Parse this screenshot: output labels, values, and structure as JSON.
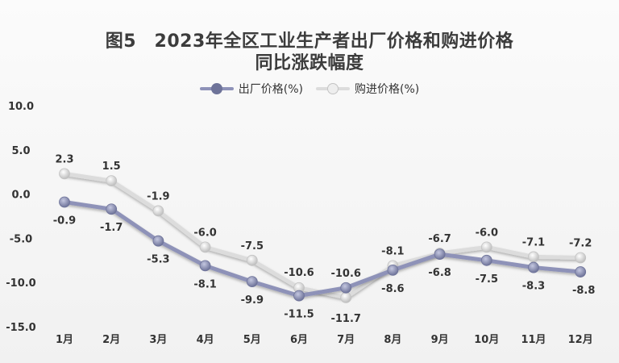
{
  "title": {
    "line1": "图5　2023年全区工业生产者出厂价格和购进价格",
    "line2": "同比涨跌幅度"
  },
  "legend": {
    "ex_factory": "出厂价格(%)",
    "purchase": "购进价格(%)"
  },
  "colors": {
    "ex_factory": "#8e92b8",
    "ex_factory_dark": "#6e7399",
    "purchase": "#dcdcdc",
    "purchase_dark": "#c3c3c3",
    "text": "#333333"
  },
  "chart_data": {
    "type": "line",
    "categories": [
      "1月",
      "2月",
      "3月",
      "4月",
      "5月",
      "6月",
      "7月",
      "8月",
      "9月",
      "10月",
      "11月",
      "12月"
    ],
    "yticks": [
      "10.0",
      "5.0",
      "0.0",
      "-5.0",
      "-10.0",
      "-15.0"
    ],
    "ylim": [
      -15,
      10
    ],
    "grid": false,
    "legend_position": "top",
    "series": [
      {
        "name": "出厂价格(%)",
        "values": [
          -0.9,
          -1.7,
          -5.3,
          -8.1,
          -9.9,
          -11.5,
          -10.6,
          -8.6,
          -6.8,
          -7.5,
          -8.3,
          -8.8
        ],
        "labels": [
          "-0.9",
          "-1.7",
          "-5.3",
          "-8.1",
          "-9.9",
          "-11.5",
          "-10.6",
          "-8.6",
          "-6.8",
          "-7.5",
          "-8.3",
          "-8.8"
        ]
      },
      {
        "name": "购进价格(%)",
        "values": [
          2.3,
          1.5,
          -1.9,
          -6.0,
          -7.5,
          -10.6,
          -11.7,
          -8.1,
          -6.7,
          -6.0,
          -7.1,
          -7.2
        ],
        "labels": [
          "2.3",
          "1.5",
          "-1.9",
          "-6.0",
          "-7.5",
          "-10.6",
          "-11.7",
          "-8.1",
          "-6.7",
          "-6.0",
          "-7.1",
          "-7.2"
        ]
      }
    ]
  }
}
